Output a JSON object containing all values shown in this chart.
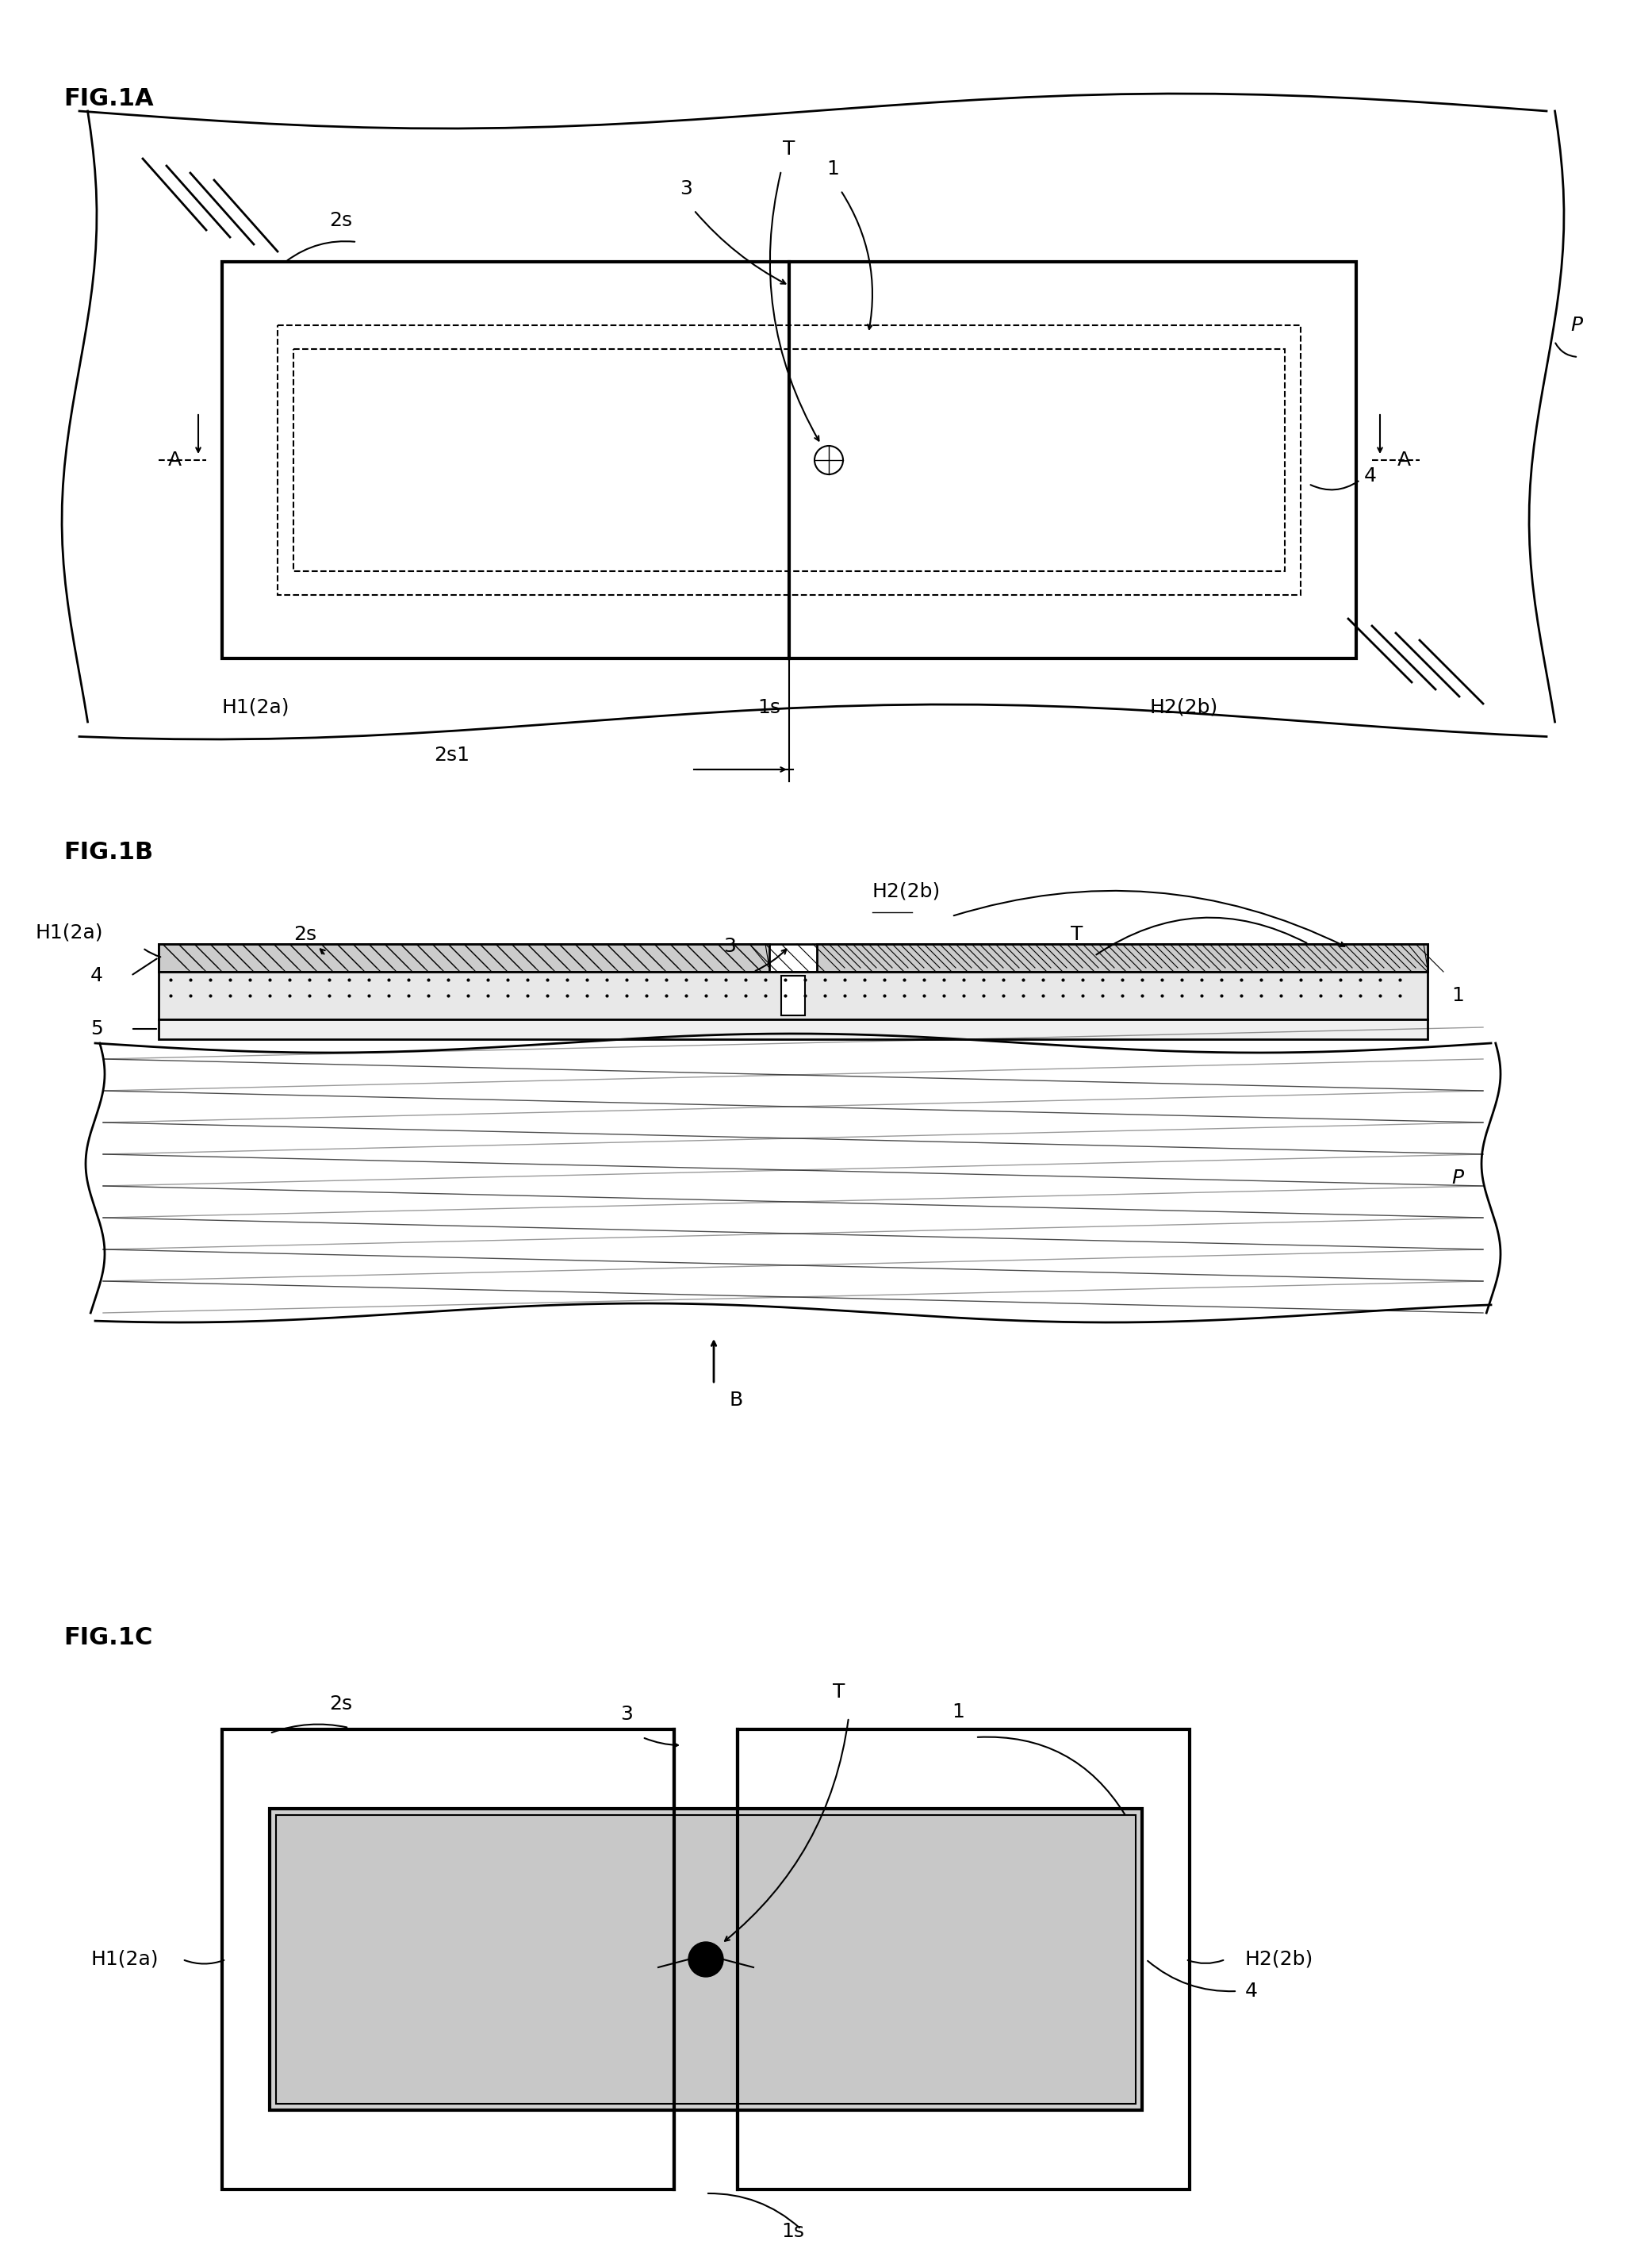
{
  "bg_color": "#ffffff",
  "line_color": "#000000",
  "fig_label_fontsize": 22,
  "annotation_fontsize": 18,
  "fig1a_title": "FIG.1A",
  "fig1b_title": "FIG.1B",
  "fig1c_title": "FIG.1C"
}
